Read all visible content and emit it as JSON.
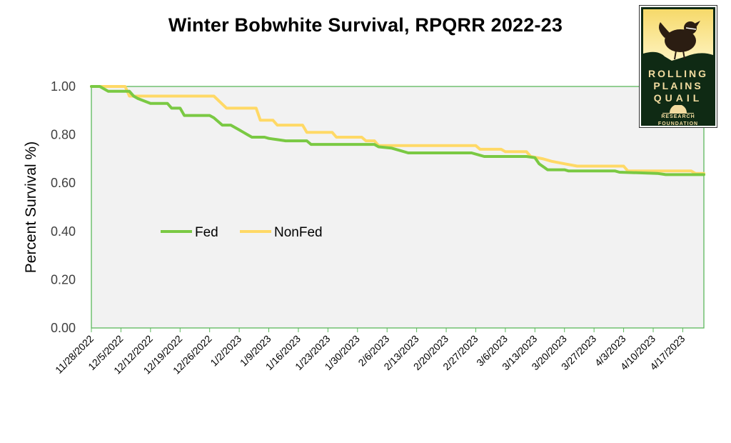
{
  "chart_data": {
    "type": "line",
    "title": "Winter Bobwhite Survival, RPQRR 2022-23",
    "xlabel": "",
    "ylabel": "Percent Survival %)",
    "ylim": [
      0,
      1
    ],
    "yticks": [
      "0.00",
      "0.20",
      "0.40",
      "0.60",
      "0.80",
      "1.00"
    ],
    "x_start": "11/28/2022",
    "x_end": "4/22/2023",
    "xticks": [
      "11/28/2022",
      "12/5/2022",
      "12/12/2022",
      "12/19/2022",
      "12/26/2022",
      "1/2/2023",
      "1/9/2023",
      "1/16/2023",
      "1/23/2023",
      "1/30/2023",
      "2/6/2023",
      "2/13/2023",
      "2/20/2023",
      "2/27/2023",
      "3/6/2023",
      "3/13/2023",
      "3/20/2023",
      "3/27/2023",
      "4/3/2023",
      "4/10/2023",
      "4/17/2023"
    ],
    "grid": false,
    "legend_position": "center-left",
    "series": [
      {
        "name": "Fed",
        "color": "#7ac943",
        "points": [
          [
            "11/28/2022",
            1.0
          ],
          [
            "11/30/2022",
            1.0
          ],
          [
            "12/2/2022",
            0.98
          ],
          [
            "12/7/2022",
            0.98
          ],
          [
            "12/8/2022",
            0.96
          ],
          [
            "12/9/2022",
            0.95
          ],
          [
            "12/12/2022",
            0.93
          ],
          [
            "12/16/2022",
            0.93
          ],
          [
            "12/17/2022",
            0.91
          ],
          [
            "12/19/2022",
            0.91
          ],
          [
            "12/20/2022",
            0.88
          ],
          [
            "12/26/2022",
            0.88
          ],
          [
            "12/27/2022",
            0.87
          ],
          [
            "12/29/2022",
            0.84
          ],
          [
            "12/31/2022",
            0.84
          ],
          [
            "1/2/2023",
            0.82
          ],
          [
            "1/3/2023",
            0.81
          ],
          [
            "1/4/2023",
            0.8
          ],
          [
            "1/5/2023",
            0.79
          ],
          [
            "1/8/2023",
            0.79
          ],
          [
            "1/9/2023",
            0.785
          ],
          [
            "1/11/2023",
            0.78
          ],
          [
            "1/13/2023",
            0.775
          ],
          [
            "1/18/2023",
            0.775
          ],
          [
            "1/19/2023",
            0.76
          ],
          [
            "2/3/2023",
            0.76
          ],
          [
            "2/4/2023",
            0.75
          ],
          [
            "2/7/2023",
            0.745
          ],
          [
            "2/9/2023",
            0.735
          ],
          [
            "2/11/2023",
            0.725
          ],
          [
            "2/26/2023",
            0.725
          ],
          [
            "2/28/2023",
            0.715
          ],
          [
            "3/1/2023",
            0.71
          ],
          [
            "3/11/2023",
            0.71
          ],
          [
            "3/13/2023",
            0.705
          ],
          [
            "3/14/2023",
            0.68
          ],
          [
            "3/16/2023",
            0.655
          ],
          [
            "3/20/2023",
            0.655
          ],
          [
            "3/21/2023",
            0.65
          ],
          [
            "4/1/2023",
            0.65
          ],
          [
            "4/2/2023",
            0.645
          ],
          [
            "4/11/2023",
            0.64
          ],
          [
            "4/13/2023",
            0.635
          ],
          [
            "4/22/2023",
            0.635
          ]
        ]
      },
      {
        "name": "NonFed",
        "color": "#ffd966",
        "points": [
          [
            "11/28/2022",
            1.0
          ],
          [
            "12/6/2022",
            1.0
          ],
          [
            "12/7/2022",
            0.96
          ],
          [
            "12/27/2022",
            0.96
          ],
          [
            "12/30/2022",
            0.91
          ],
          [
            "1/6/2023",
            0.91
          ],
          [
            "1/7/2023",
            0.86
          ],
          [
            "1/10/2023",
            0.86
          ],
          [
            "1/11/2023",
            0.84
          ],
          [
            "1/17/2023",
            0.84
          ],
          [
            "1/18/2023",
            0.81
          ],
          [
            "1/24/2023",
            0.81
          ],
          [
            "1/25/2023",
            0.79
          ],
          [
            "1/31/2023",
            0.79
          ],
          [
            "2/1/2023",
            0.775
          ],
          [
            "2/3/2023",
            0.775
          ],
          [
            "2/4/2023",
            0.755
          ],
          [
            "2/27/2023",
            0.755
          ],
          [
            "2/28/2023",
            0.74
          ],
          [
            "3/5/2023",
            0.74
          ],
          [
            "3/6/2023",
            0.73
          ],
          [
            "3/11/2023",
            0.73
          ],
          [
            "3/12/2023",
            0.71
          ],
          [
            "3/15/2023",
            0.7
          ],
          [
            "3/17/2023",
            0.69
          ],
          [
            "3/20/2023",
            0.68
          ],
          [
            "3/23/2023",
            0.67
          ],
          [
            "4/3/2023",
            0.67
          ],
          [
            "4/4/2023",
            0.65
          ],
          [
            "4/19/2023",
            0.65
          ],
          [
            "4/20/2023",
            0.64
          ],
          [
            "4/22/2023",
            0.64
          ]
        ]
      }
    ]
  },
  "logo": {
    "line1": "ROLLING",
    "line2": "PLAINS",
    "line3": "QUAIL",
    "line4": "RESEARCH",
    "line5": "FOUNDATION",
    "icon": "quail-icon"
  }
}
